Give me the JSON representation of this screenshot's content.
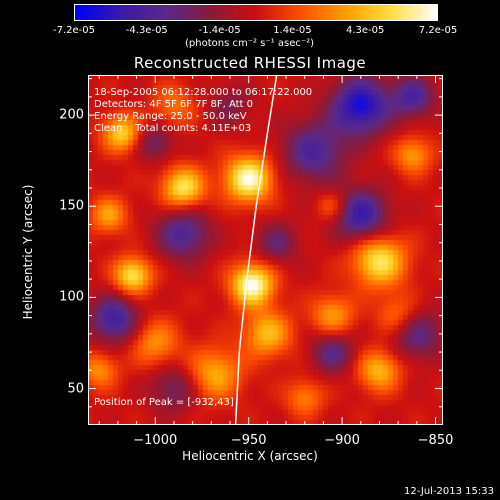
{
  "colorbar": {
    "ticks": [
      "-7.2e-05",
      "-4.3e-05",
      "-1.4e-05",
      "1.4e-05",
      "4.3e-05",
      "7.2e-05"
    ],
    "unit_label": "(photons cm⁻² s⁻¹ asec⁻²)",
    "colors": [
      "#0000ff",
      "#3a1aa8",
      "#5a2a8a",
      "#8a1a3a",
      "#cc1010",
      "#ff5000",
      "#ffa000",
      "#ffe040",
      "#ffffff"
    ]
  },
  "annotations": {
    "line1": "18-Sep-2005 06:12:28.000 to 06:17:22.000",
    "line2": "Detectors: 4F 5F 6F 7F 8F, Att 0",
    "line3": "Energy Range: 25.0 - 50.0 keV",
    "line4": "Clean    Total counts: 4.11E+03",
    "peak": "Position of Peak = [-932,43]"
  },
  "footer": {
    "timestamp": "12-Jul-2013 15:33"
  },
  "chart_data": {
    "type": "heatmap",
    "title": "Reconstructed RHESSI Image",
    "xlabel": "Heliocentric X (arcsec)",
    "ylabel": "Heliocentric Y (arcsec)",
    "xlim": [
      -1036,
      -846
    ],
    "ylim": [
      30,
      222
    ],
    "x_ticks": [
      -1000,
      -950,
      -900,
      -850
    ],
    "y_ticks": [
      50,
      100,
      150,
      200
    ],
    "x_tick_labels": [
      "−1000",
      "−950",
      "−900",
      "−850"
    ],
    "y_tick_labels": [
      "50",
      "100",
      "150",
      "200"
    ],
    "value_range": [
      -7.2e-05,
      7.2e-05
    ],
    "peak_position": [
      -932,
      43
    ],
    "limb_curve": [
      [
        -957,
        30
      ],
      [
        -955,
        70
      ],
      [
        -951,
        110
      ],
      [
        -946,
        150
      ],
      [
        -940,
        190
      ],
      [
        -935,
        222
      ]
    ],
    "sources": [
      {
        "x": -948,
        "y": 107,
        "v": 1.0,
        "s": 8
      },
      {
        "x": -1012,
        "y": 112,
        "v": 0.8,
        "s": 7
      },
      {
        "x": -950,
        "y": 165,
        "v": 0.95,
        "s": 9
      },
      {
        "x": -985,
        "y": 160,
        "v": 0.8,
        "s": 8
      },
      {
        "x": -880,
        "y": 120,
        "v": 0.8,
        "s": 10
      },
      {
        "x": -1018,
        "y": 190,
        "v": 0.7,
        "s": 7
      },
      {
        "x": -940,
        "y": 80,
        "v": 0.6,
        "s": 9
      },
      {
        "x": -968,
        "y": 58,
        "v": 0.55,
        "s": 10
      },
      {
        "x": -905,
        "y": 90,
        "v": 0.5,
        "s": 8
      },
      {
        "x": -1000,
        "y": 75,
        "v": 0.45,
        "s": 9
      },
      {
        "x": -880,
        "y": 60,
        "v": 0.6,
        "s": 8
      },
      {
        "x": -862,
        "y": 178,
        "v": 0.5,
        "s": 7
      },
      {
        "x": -1025,
        "y": 145,
        "v": 0.5,
        "s": 7
      },
      {
        "x": -920,
        "y": 45,
        "v": 0.4,
        "s": 7
      },
      {
        "x": -990,
        "y": 205,
        "v": 0.35,
        "s": 8
      },
      {
        "x": -870,
        "y": 90,
        "v": 0.4,
        "s": 8
      },
      {
        "x": -1030,
        "y": 60,
        "v": 0.45,
        "s": 7
      },
      {
        "x": -905,
        "y": 150,
        "v": 0.35,
        "s": 6
      },
      {
        "x": -890,
        "y": 205,
        "v": -0.9,
        "s": 11
      },
      {
        "x": -915,
        "y": 180,
        "v": -0.6,
        "s": 12
      },
      {
        "x": -890,
        "y": 145,
        "v": -0.75,
        "s": 10
      },
      {
        "x": -1022,
        "y": 88,
        "v": -0.7,
        "s": 9
      },
      {
        "x": -985,
        "y": 135,
        "v": -0.6,
        "s": 10
      },
      {
        "x": -862,
        "y": 210,
        "v": -0.6,
        "s": 8
      },
      {
        "x": -860,
        "y": 80,
        "v": -0.5,
        "s": 10
      },
      {
        "x": -905,
        "y": 70,
        "v": -0.5,
        "s": 8
      },
      {
        "x": -990,
        "y": 50,
        "v": -0.4,
        "s": 9
      },
      {
        "x": -1000,
        "y": 185,
        "v": -0.4,
        "s": 7
      },
      {
        "x": -935,
        "y": 130,
        "v": -0.4,
        "s": 8
      },
      {
        "x": -960,
        "y": 205,
        "v": -0.3,
        "s": 8
      }
    ]
  }
}
